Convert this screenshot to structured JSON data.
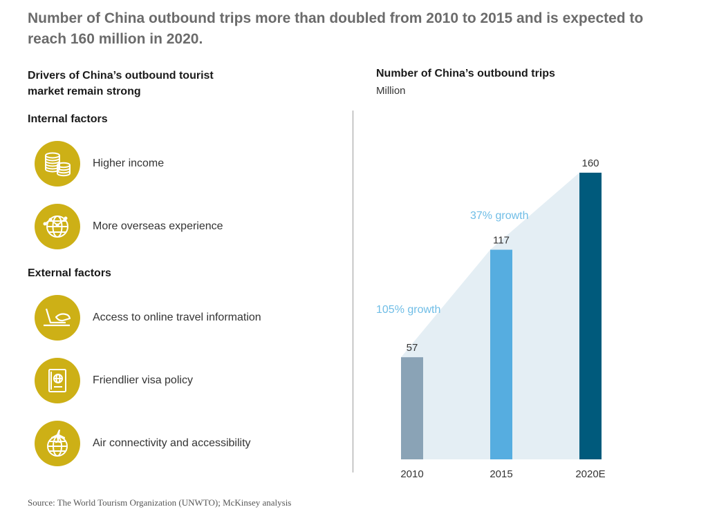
{
  "headline": "Number of China outbound trips more than doubled from 2010 to 2015 and is expected to reach 160 million in 2020.",
  "left_panel": {
    "title_line1": "Drivers of China’s outbound tourist",
    "title_line2": "market remain strong",
    "internal_title": "Internal factors",
    "internal_factors": [
      {
        "label": "Higher income",
        "icon": "coins-icon"
      },
      {
        "label": "More overseas experience",
        "icon": "globe-network-icon"
      }
    ],
    "external_title": "External factors",
    "external_factors": [
      {
        "label": "Access to online travel information",
        "icon": "laptop-hand-icon"
      },
      {
        "label": "Friendlier visa policy",
        "icon": "passport-icon"
      },
      {
        "label": "Air connectivity and accessibility",
        "icon": "airplane-globe-icon"
      }
    ]
  },
  "source": "Source: The World Tourism Organization (UNWTO); McKinsey analysis",
  "colors": {
    "accent_gold": "#cdb016",
    "bar_2010": "#8aa3b6",
    "bar_2015": "#56ade0",
    "bar_2020": "#005a7c",
    "growth_text": "#6fbde6",
    "growth_area": "#e4eef4"
  },
  "chart_data": {
    "type": "bar",
    "title": "Number of China’s outbound trips",
    "unit": "Million",
    "categories": [
      "2010",
      "2015",
      "2020E"
    ],
    "values": [
      57,
      117,
      160
    ],
    "ylim": [
      0,
      160
    ],
    "grid": false,
    "annotations": [
      {
        "text": "105% growth",
        "from": "2010",
        "to": "2015"
      },
      {
        "text": "37% growth",
        "from": "2015",
        "to": "2020E"
      }
    ]
  }
}
